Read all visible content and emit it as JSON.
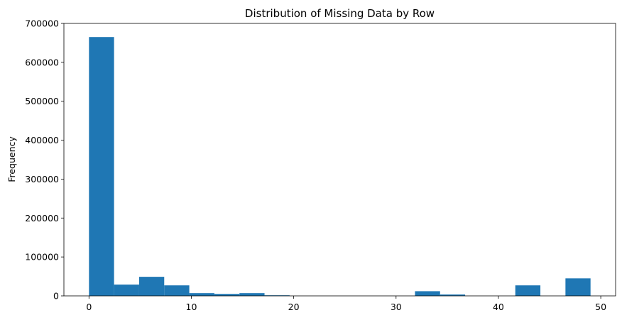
{
  "chart_data": {
    "type": "bar",
    "title": "Distribution of Missing Data by Row",
    "xlabel": "",
    "ylabel": "Frequency",
    "xlim": [
      -2.45,
      51.45
    ],
    "ylim": [
      0,
      700000
    ],
    "xticks": [
      0,
      10,
      20,
      30,
      40,
      50
    ],
    "yticks": [
      0,
      100000,
      200000,
      300000,
      400000,
      500000,
      600000,
      700000
    ],
    "grid": false,
    "bin_edges": [
      0,
      2.45,
      4.9,
      7.35,
      9.8,
      12.25,
      14.7,
      17.15,
      19.6,
      22.05,
      24.5,
      26.95,
      29.4,
      31.85,
      34.3,
      36.75,
      39.2,
      41.65,
      44.1,
      46.55,
      49.0
    ],
    "series": [
      {
        "values": [
          665000,
          29000,
          49000,
          27000,
          7000,
          5000,
          7000,
          1500,
          0,
          0,
          0,
          0,
          0,
          12000,
          3500,
          0,
          0,
          27000,
          0,
          45000
        ]
      }
    ],
    "bar_color": "#1f77b4"
  }
}
